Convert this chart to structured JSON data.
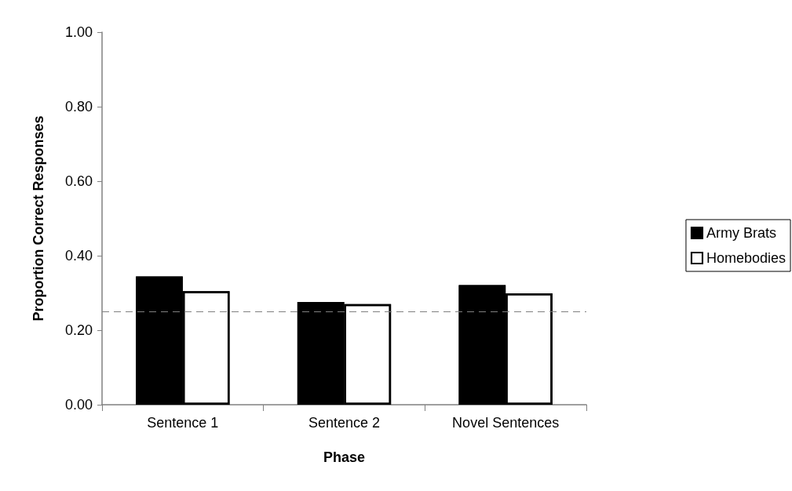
{
  "chart_data": {
    "type": "bar",
    "xlabel": "Phase",
    "ylabel": "Proportion Correct Responses",
    "categories": [
      "Sentence 1",
      "Sentence 2",
      "Novel Sentences"
    ],
    "series": [
      {
        "name": "Army Brats",
        "color": "#000000",
        "values": [
          0.344,
          0.276,
          0.321
        ]
      },
      {
        "name": "Homebodies",
        "color": "#ffffff",
        "values": [
          0.305,
          0.27,
          0.299
        ]
      }
    ],
    "ylim": [
      0,
      1
    ],
    "yticks": [
      {
        "value": 0,
        "label": "0.00"
      },
      {
        "value": 0.2,
        "label": "0.20"
      },
      {
        "value": 0.4,
        "label": "0.40"
      },
      {
        "value": 0.6,
        "label": "0.60"
      },
      {
        "value": 0.8,
        "label": "0.80"
      },
      {
        "value": 1,
        "label": "1.00"
      }
    ],
    "ref_lines": [
      {
        "axis": "y",
        "value": 0.25,
        "color": "#808080",
        "line_style": "dashed"
      }
    ],
    "grid": false,
    "legend": "right"
  }
}
